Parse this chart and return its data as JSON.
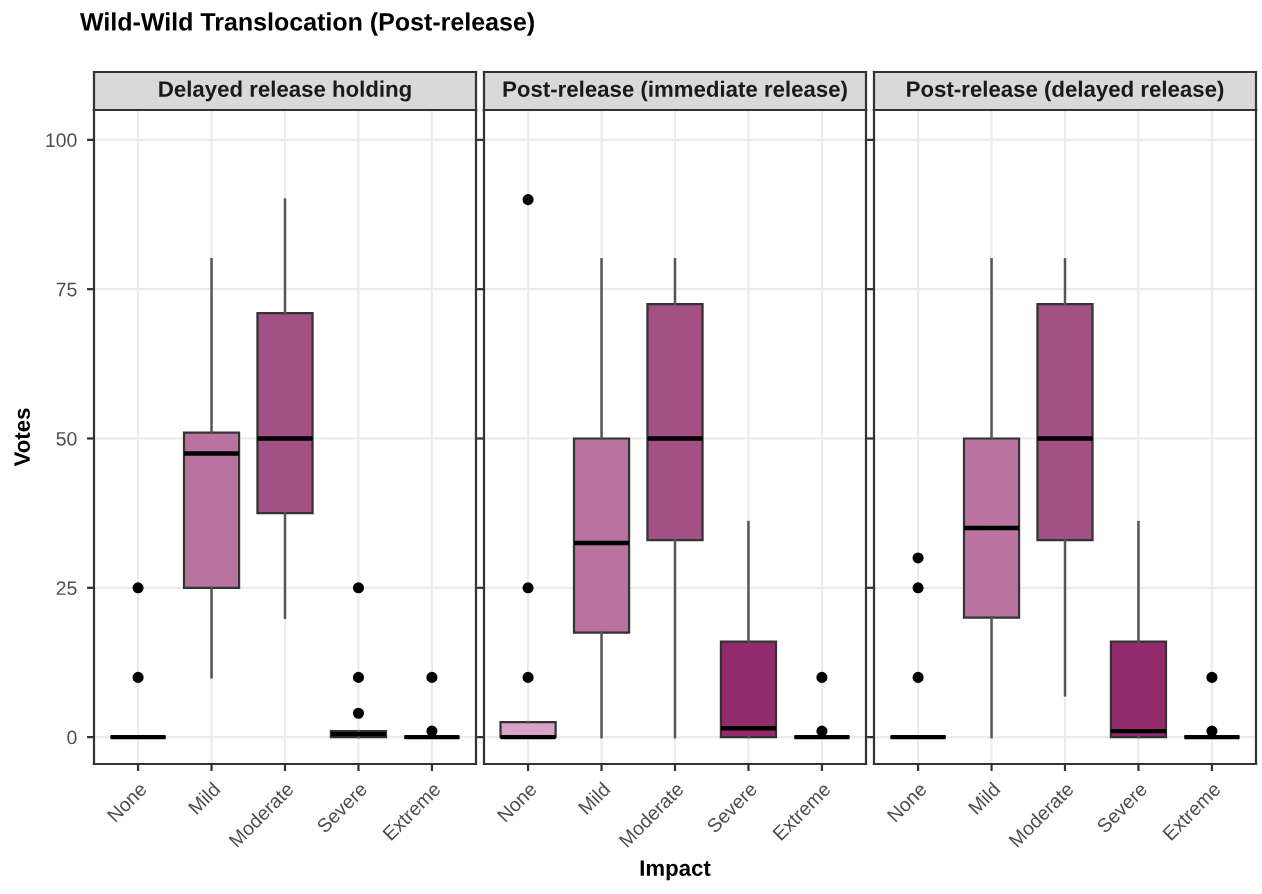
{
  "chart_data": [
    {
      "type": "box",
      "title": "Delayed release holding",
      "ylabel": "Votes",
      "annotations": [
        "Wild-Wild Translocation (Post-release)"
      ],
      "categories": [
        "None",
        "Mild",
        "Moderate",
        "Severe",
        "Extreme"
      ],
      "colors": [
        null,
        "#b8739f",
        "#a35084",
        "#922b6c",
        null
      ],
      "ylim": [
        -4.5,
        105
      ],
      "yticks": [
        0,
        25,
        50,
        75,
        100
      ],
      "grid": true,
      "boxes": [
        {
          "low": 0,
          "q1": 0,
          "median": 0,
          "q3": 0,
          "high": 0,
          "outliers": [
            10,
            25
          ]
        },
        {
          "low": 10,
          "q1": 25,
          "median": 47.5,
          "q3": 51,
          "high": 80
        },
        {
          "low": 20,
          "q1": 37.5,
          "median": 50,
          "q3": 71,
          "high": 90
        },
        {
          "low": 0,
          "q1": 0,
          "median": 0.5,
          "q3": 1,
          "high": 1,
          "outliers": [
            4,
            10,
            25
          ]
        },
        {
          "low": 0,
          "q1": 0,
          "median": 0,
          "q3": 0,
          "high": 0,
          "outliers": [
            1,
            10
          ]
        }
      ]
    },
    {
      "type": "box",
      "title": "Post-release (immediate release)",
      "xlabel": "Impact",
      "categories": [
        "None",
        "Mild",
        "Moderate",
        "Severe",
        "Extreme"
      ],
      "colors": [
        "#d7a3c6",
        "#b8739f",
        "#a35084",
        "#922b6c",
        null
      ],
      "ylim": [
        -4.5,
        105
      ],
      "yticks": [
        0,
        25,
        50,
        75,
        100
      ],
      "grid": true,
      "tick_labels": "x",
      "boxes": [
        {
          "low": 0,
          "q1": 0,
          "median": 0,
          "q3": 2.5,
          "high": 2.5,
          "outliers": [
            10,
            25,
            90
          ]
        },
        {
          "low": 0,
          "q1": 17.5,
          "median": 32.5,
          "q3": 50,
          "high": 80
        },
        {
          "low": 0,
          "q1": 33,
          "median": 50,
          "q3": 72.5,
          "high": 80
        },
        {
          "low": 0,
          "q1": 0,
          "median": 1.5,
          "q3": 16,
          "high": 36
        },
        {
          "low": 0,
          "q1": 0,
          "median": 0,
          "q3": 0,
          "high": 0,
          "outliers": [
            1,
            10
          ]
        }
      ]
    },
    {
      "type": "box",
      "title": "Post-release (delayed release)",
      "categories": [
        "None",
        "Mild",
        "Moderate",
        "Severe",
        "Extreme"
      ],
      "colors": [
        null,
        "#b8739f",
        "#a35084",
        "#922b6c",
        null
      ],
      "ylim": [
        -4.5,
        105
      ],
      "yticks": [
        0,
        25,
        50,
        75,
        100
      ],
      "grid": true,
      "tick_labels": "x",
      "boxes": [
        {
          "low": 0,
          "q1": 0,
          "median": 0,
          "q3": 0,
          "high": 0,
          "outliers": [
            10,
            25,
            30
          ]
        },
        {
          "low": 0,
          "q1": 20,
          "median": 35,
          "q3": 50,
          "high": 80
        },
        {
          "low": 7,
          "q1": 33,
          "median": 50,
          "q3": 72.5,
          "high": 80
        },
        {
          "low": 0,
          "q1": 0,
          "median": 1,
          "q3": 16,
          "high": 36
        },
        {
          "low": 0,
          "q1": 0,
          "median": 0,
          "q3": 0,
          "high": 0,
          "outliers": [
            1,
            10
          ]
        }
      ]
    }
  ]
}
